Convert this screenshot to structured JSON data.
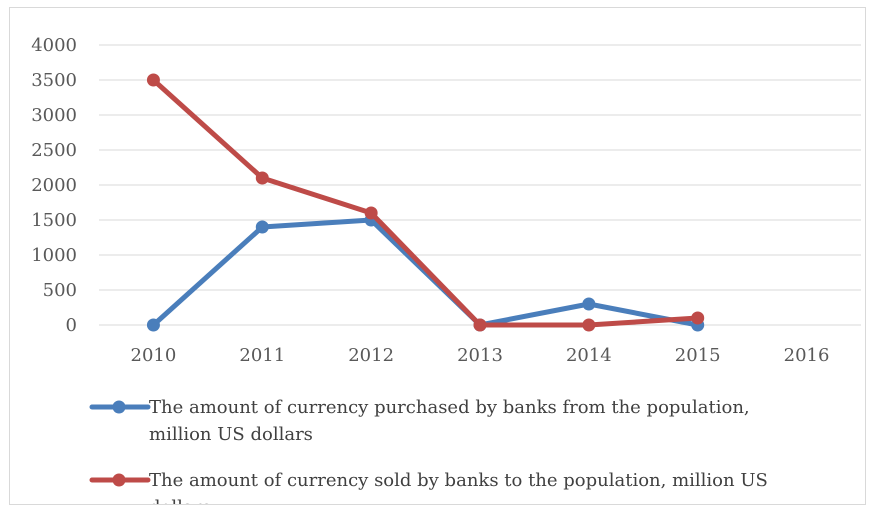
{
  "chart_data": {
    "type": "line",
    "title": "",
    "xlabel": "",
    "ylabel": "",
    "categories": [
      "2010",
      "2011",
      "2012",
      "2013",
      "2014",
      "2015",
      "2016"
    ],
    "yticks": [
      "0",
      "500",
      "1000",
      "1500",
      "2000",
      "2500",
      "3000",
      "3500",
      "4000"
    ],
    "ylim": [
      0,
      4000
    ],
    "grid": true,
    "legend_position": "bottom",
    "series": [
      {
        "name": "The amount of currency purchased by banks from the population, million US dollars",
        "legend_lines": [
          "The amount of currency purchased by banks from the population,",
          "million US dollars"
        ],
        "color": "#4a7ebb",
        "values": [
          0,
          1400,
          1500,
          0,
          300,
          0,
          null
        ]
      },
      {
        "name": "The amount of currency sold by banks to the population, million US dollars",
        "legend_lines": [
          "The amount of currency sold by banks to the population, million US",
          "dollars"
        ],
        "color": "#be4b48",
        "values": [
          3500,
          2100,
          1600,
          0,
          0,
          100,
          null
        ]
      }
    ]
  }
}
